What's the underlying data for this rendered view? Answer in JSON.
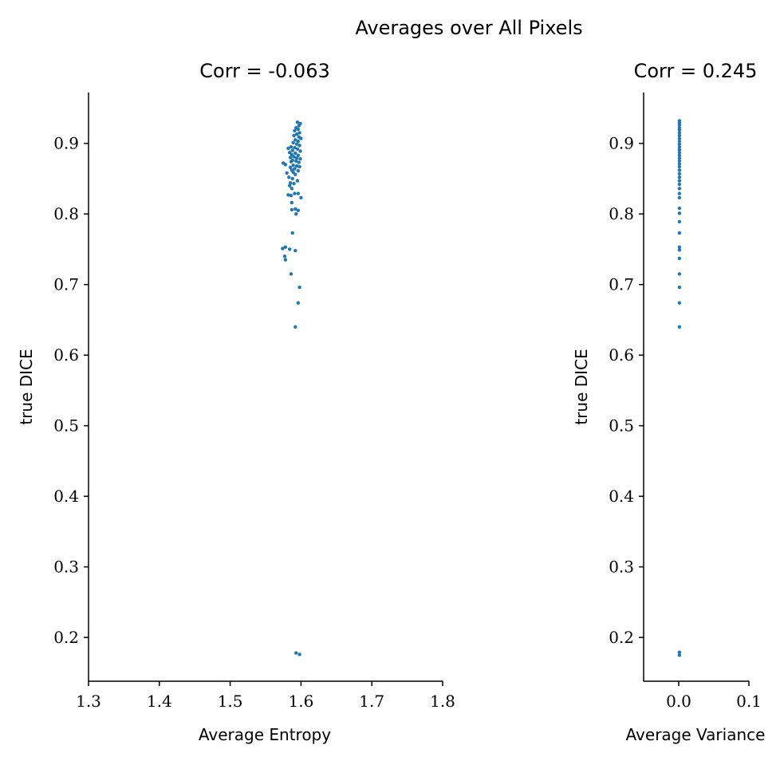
{
  "figure": {
    "suptitle": "Averages over All Pixels"
  },
  "chart_data": [
    {
      "type": "scatter",
      "title": "Corr = -0.063",
      "xlabel": "Average Entropy",
      "ylabel": "true DICE",
      "xlim": [
        1.3,
        1.8
      ],
      "ylim": [
        0.138,
        0.972
      ],
      "xticks": [
        1.3,
        1.4,
        1.5,
        1.6,
        1.7,
        1.8
      ],
      "xtick_labels": [
        "1.3",
        "1.4",
        "1.5",
        "1.6",
        "1.7",
        "1.8"
      ],
      "yticks": [
        0.2,
        0.3,
        0.4,
        0.5,
        0.6,
        0.7,
        0.8,
        0.9
      ],
      "ytick_labels": [
        "0.2",
        "0.3",
        "0.4",
        "0.5",
        "0.6",
        "0.7",
        "0.8",
        "0.9"
      ],
      "marker_color": "#1f77b4",
      "grid": false,
      "points": [
        [
          1.595,
          0.93
        ],
        [
          1.599,
          0.928
        ],
        [
          1.597,
          0.925
        ],
        [
          1.593,
          0.922
        ],
        [
          1.596,
          0.92
        ],
        [
          1.591,
          0.918
        ],
        [
          1.598,
          0.915
        ],
        [
          1.594,
          0.913
        ],
        [
          1.59,
          0.911
        ],
        [
          1.597,
          0.909
        ],
        [
          1.6,
          0.907
        ],
        [
          1.592,
          0.905
        ],
        [
          1.596,
          0.903
        ],
        [
          1.589,
          0.901
        ],
        [
          1.594,
          0.899
        ],
        [
          1.598,
          0.897
        ],
        [
          1.586,
          0.895
        ],
        [
          1.591,
          0.894
        ],
        [
          1.582,
          0.893
        ],
        [
          1.595,
          0.892
        ],
        [
          1.588,
          0.89
        ],
        [
          1.599,
          0.889
        ],
        [
          1.584,
          0.887
        ],
        [
          1.592,
          0.886
        ],
        [
          1.587,
          0.884
        ],
        [
          1.596,
          0.883
        ],
        [
          1.59,
          0.881
        ],
        [
          1.585,
          0.88
        ],
        [
          1.594,
          0.879
        ],
        [
          1.599,
          0.878
        ],
        [
          1.588,
          0.876
        ],
        [
          1.593,
          0.875
        ],
        [
          1.586,
          0.874
        ],
        [
          1.597,
          0.873
        ],
        [
          1.575,
          0.872
        ],
        [
          1.578,
          0.87
        ],
        [
          1.589,
          0.869
        ],
        [
          1.594,
          0.868
        ],
        [
          1.598,
          0.867
        ],
        [
          1.585,
          0.866
        ],
        [
          1.591,
          0.864
        ],
        [
          1.587,
          0.862
        ],
        [
          1.596,
          0.861
        ],
        [
          1.589,
          0.859
        ],
        [
          1.58,
          0.858
        ],
        [
          1.592,
          0.856
        ],
        [
          1.583,
          0.852
        ],
        [
          1.588,
          0.85
        ],
        [
          1.595,
          0.847
        ],
        [
          1.585,
          0.844
        ],
        [
          1.59,
          0.843
        ],
        [
          1.584,
          0.84
        ],
        [
          1.587,
          0.836
        ],
        [
          1.582,
          0.827
        ],
        [
          1.591,
          0.829
        ],
        [
          1.596,
          0.829
        ],
        [
          1.586,
          0.826
        ],
        [
          1.6,
          0.823
        ],
        [
          1.587,
          0.816
        ],
        [
          1.592,
          0.807
        ],
        [
          1.587,
          0.806
        ],
        [
          1.596,
          0.805
        ],
        [
          1.593,
          0.8
        ],
        [
          1.588,
          0.773
        ],
        [
          1.578,
          0.753
        ],
        [
          1.574,
          0.751
        ],
        [
          1.584,
          0.75
        ],
        [
          1.592,
          0.748
        ],
        [
          1.577,
          0.74
        ],
        [
          1.578,
          0.735
        ],
        [
          1.586,
          0.715
        ],
        [
          1.598,
          0.696
        ],
        [
          1.596,
          0.674
        ],
        [
          1.592,
          0.64
        ],
        [
          1.593,
          0.178
        ],
        [
          1.598,
          0.176
        ]
      ]
    },
    {
      "type": "scatter",
      "title": "Corr = 0.245",
      "xlabel": "Average Variance",
      "ylabel": "true DICE",
      "xlim": [
        -0.05,
        0.1
      ],
      "ylim": [
        0.138,
        0.972
      ],
      "xticks": [
        0.0,
        0.1
      ],
      "xtick_labels": [
        "0.0",
        "0.1"
      ],
      "yticks": [
        0.2,
        0.3,
        0.4,
        0.5,
        0.6,
        0.7,
        0.8,
        0.9
      ],
      "ytick_labels": [
        "0.2",
        "0.3",
        "0.4",
        "0.5",
        "0.6",
        "0.7",
        "0.8",
        "0.9"
      ],
      "marker_color": "#1f77b4",
      "grid": false,
      "points": [
        [
          0.001,
          0.932
        ],
        [
          0.001,
          0.929
        ],
        [
          0.001,
          0.926
        ],
        [
          0.001,
          0.922
        ],
        [
          0.001,
          0.919
        ],
        [
          0.001,
          0.915
        ],
        [
          0.001,
          0.911
        ],
        [
          0.001,
          0.907
        ],
        [
          0.001,
          0.903
        ],
        [
          0.001,
          0.899
        ],
        [
          0.001,
          0.895
        ],
        [
          0.001,
          0.891
        ],
        [
          0.001,
          0.887
        ],
        [
          0.001,
          0.883
        ],
        [
          0.001,
          0.879
        ],
        [
          0.001,
          0.875
        ],
        [
          0.001,
          0.871
        ],
        [
          0.001,
          0.867
        ],
        [
          0.001,
          0.862
        ],
        [
          0.001,
          0.857
        ],
        [
          0.001,
          0.852
        ],
        [
          0.001,
          0.847
        ],
        [
          0.001,
          0.842
        ],
        [
          0.001,
          0.836
        ],
        [
          0.001,
          0.829
        ],
        [
          0.001,
          0.823
        ],
        [
          0.001,
          0.808
        ],
        [
          0.001,
          0.801
        ],
        [
          0.001,
          0.789
        ],
        [
          0.001,
          0.773
        ],
        [
          0.001,
          0.753
        ],
        [
          0.001,
          0.749
        ],
        [
          0.001,
          0.737
        ],
        [
          0.001,
          0.715
        ],
        [
          0.001,
          0.696
        ],
        [
          0.001,
          0.674
        ],
        [
          0.001,
          0.64
        ],
        [
          0.001,
          0.179
        ],
        [
          0.001,
          0.175
        ]
      ]
    }
  ]
}
